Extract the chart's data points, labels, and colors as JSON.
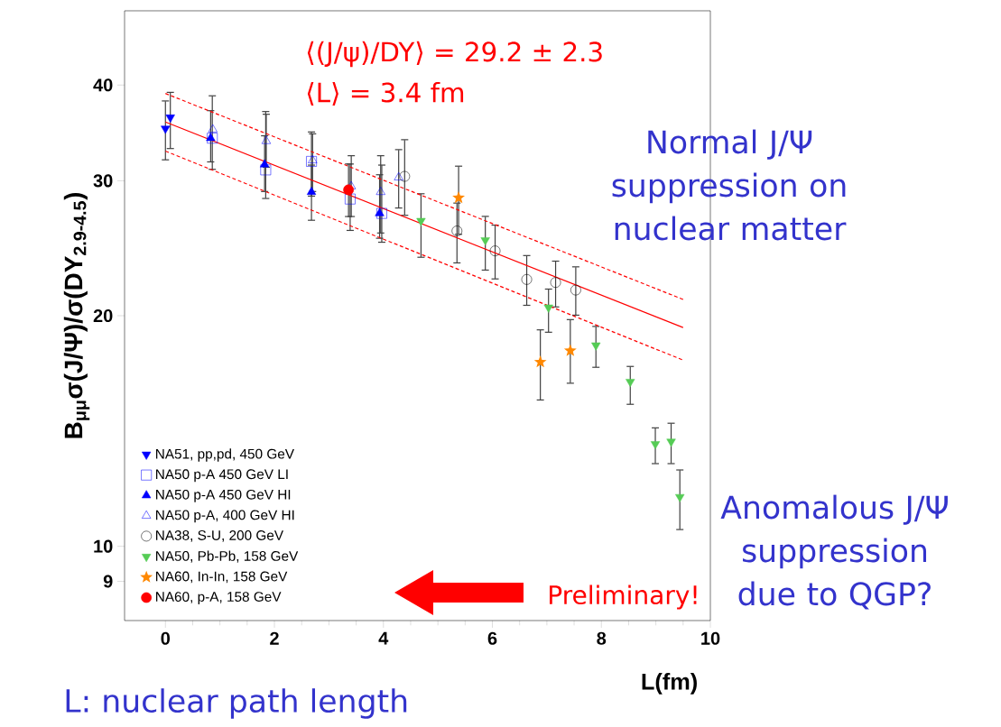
{
  "chart_data": {
    "type": "scatter",
    "ylabel": "B$_{μμ}$σ(J/Ψ)/σ(DY$_{2.9-4.5}$)",
    "xlabel": "L(fm)",
    "xlim": [
      -0.75,
      10
    ],
    "xticks": [
      0,
      2,
      4,
      6,
      8,
      10
    ],
    "ylim": [
      8,
      50
    ],
    "yticks": [
      9,
      10,
      20,
      30,
      40
    ],
    "log": true,
    "legend": "bottom left",
    "annotations": [
      "⟨(J/ψ)/DY⟩ = 29.2 ± 2.3",
      "⟨L⟩ = 3.4 fm",
      "Normal J/Ψ suppression on nuclear matter",
      "Anomalous J/Ψ suppression due to QGP?",
      "Preliminary!",
      "L: nuclear path length"
    ],
    "series": [
      {
        "name": "NA51, pp,pd, 450 GeV",
        "color": "#0000ff",
        "marker": "triangle-down",
        "x": [
          0.0,
          0.09
        ],
        "values": [
          35.1,
          36.3
        ],
        "errors": [
          [
            31.9,
            38.2
          ],
          [
            33.0,
            39.2
          ]
        ]
      },
      {
        "name": "NA50 p-A 450 GeV LI",
        "color": "#0000ff",
        "marker": "square-open",
        "x": [
          0.86,
          1.84,
          2.68,
          3.39,
          3.97
        ],
        "values": [
          34.1,
          31.0,
          31.8,
          28.4,
          27.2
        ],
        "errors": [
          [
            31.0,
            38.8
          ],
          [
            28.4,
            37.0
          ],
          [
            28.6,
            34.8
          ],
          [
            25.8,
            31.6
          ],
          [
            24.9,
            31.5
          ]
        ]
      },
      {
        "name": "NA50 p-A 450 GeV HI",
        "color": "#0000ff",
        "marker": "triangle",
        "x": [
          0.83,
          1.82,
          2.68,
          3.93
        ],
        "values": [
          34.1,
          31.5,
          29.0,
          27.2
        ],
        "errors": [
          [
            31.7,
            37.1
          ],
          [
            29.0,
            34.4
          ],
          [
            26.6,
            31.5
          ],
          [
            25.2,
            30.6
          ]
        ]
      },
      {
        "name": "NA50 p-A, 400 GeV HI",
        "color": "#0000ff",
        "marker": "triangle-open",
        "x": [
          0.87,
          1.85,
          2.7,
          3.41,
          3.95,
          4.28
        ],
        "values": [
          35.0,
          33.8,
          31.9,
          29.5,
          29.0,
          30.3
        ],
        "errors": [
          null,
          [
            31.2,
            36.7
          ],
          [
            29.0,
            34.6
          ],
          [
            26.9,
            32.4
          ],
          [
            25.6,
            32.4
          ],
          [
            27.6,
            33.0
          ]
        ]
      },
      {
        "name": "NA38, S-U, 200 GeV",
        "color": "#000000",
        "marker": "circle-open",
        "x": [
          4.39,
          5.35,
          6.05,
          6.63,
          7.16,
          7.53
        ],
        "values": [
          30.4,
          25.8,
          24.3,
          22.3,
          22.1,
          21.6
        ],
        "errors": [
          [
            27.0,
            34.0
          ],
          [
            23.4,
            28.1
          ],
          [
            22.3,
            26.3
          ],
          [
            20.6,
            24.0
          ],
          [
            20.5,
            23.6
          ],
          [
            20.0,
            23.2
          ]
        ]
      },
      {
        "name": "NA50, Pb-Pb, 158 GeV",
        "color": "#55cc55",
        "marker": "triangle-down",
        "x": [
          4.69,
          5.87,
          7.03,
          7.9,
          8.53,
          8.99,
          9.28,
          9.44
        ],
        "values": [
          26.6,
          25.1,
          20.5,
          18.3,
          16.4,
          13.6,
          13.7,
          11.6
        ],
        "errors": [
          [
            23.8,
            28.9
          ],
          [
            22.9,
            27.0
          ],
          [
            19.0,
            21.7
          ],
          [
            17.1,
            19.4
          ],
          [
            15.3,
            17.2
          ],
          [
            12.8,
            14.3
          ],
          [
            12.8,
            14.5
          ],
          [
            10.5,
            12.6
          ]
        ]
      },
      {
        "name": "NA60, In-In, 158 GeV",
        "color": "#ff8800",
        "marker": "star",
        "x": [
          5.38,
          6.88,
          7.43
        ],
        "values": [
          28.5,
          17.4,
          18.0
        ],
        "errors": [
          [
            25.5,
            31.4
          ],
          [
            15.5,
            19.2
          ],
          [
            16.3,
            19.8
          ]
        ]
      },
      {
        "name": "NA60, p-A, 158 GeV",
        "color": "#ff0000",
        "marker": "circle",
        "x": [
          3.36
        ],
        "values": [
          29.2
        ],
        "errors": [
          [
            26.9,
            31.6
          ]
        ]
      },
      {
        "type": "line",
        "color": "#ff0000",
        "marker": "none",
        "line_style": "solid",
        "x": [
          0,
          9.5
        ],
        "values": [
          35.8,
          19.3
        ]
      },
      {
        "type": "line",
        "color": "#ff0000",
        "marker": "none",
        "line_style": "dashed",
        "x": [
          0,
          9.5
        ],
        "values": [
          39.0,
          21.0
        ]
      },
      {
        "type": "line",
        "color": "#ff0000",
        "marker": "none",
        "line_style": "dashed",
        "x": [
          0,
          9.5
        ],
        "values": [
          32.8,
          17.5
        ]
      }
    ]
  }
}
